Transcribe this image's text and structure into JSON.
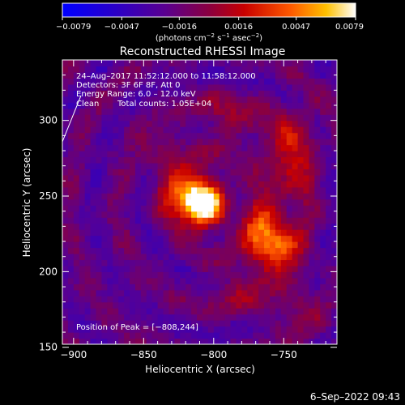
{
  "chart_data": {
    "type": "heatmap",
    "title": "Reconstructed RHESSI Image",
    "xlabel": "Heliocentric X (arcsec)",
    "ylabel": "Heliocentric Y (arcsec)",
    "xlim": [
      -908,
      -712
    ],
    "ylim": [
      152,
      340
    ],
    "xticks": [
      -900,
      -850,
      -800,
      -750
    ],
    "yticks": [
      150,
      200,
      250,
      300
    ],
    "x_tick_labels": [
      "−900",
      "−850",
      "−800",
      "−750"
    ],
    "y_tick_labels": [
      "150",
      "200",
      "250",
      "300"
    ],
    "colorbar": {
      "min": -0.0079,
      "max": 0.0079,
      "ticks": [
        -0.0079,
        -0.0047,
        -0.0016,
        0.0016,
        0.0047,
        0.0079
      ],
      "tick_labels": [
        "−0.0079",
        "−0.0047",
        "−0.0016",
        "0.0016",
        "0.0047",
        "0.0079"
      ],
      "unit_main": "(photons cm",
      "unit_exp1": "−2",
      "unit_mid": " s",
      "unit_exp2": "−1",
      "unit_mid2": " asec",
      "unit_exp3": "−2",
      "unit_end": ")"
    },
    "annotations": [
      "24–Aug–2017 11:52:12.000 to 11:58:12.000",
      "Detectors: 3F 6F 8F, Att 0",
      "Energy Range: 6.0 – 12.0 keV",
      "Clean",
      "Total counts: 1.05E+04"
    ],
    "peak_label": "Position of Peak = [−808,244]",
    "peak": [
      -808,
      244
    ],
    "sources": [
      {
        "x": -808,
        "y": 244,
        "amp": 1.0,
        "sx": 10,
        "sy": 10
      },
      {
        "x": -818,
        "y": 252,
        "amp": 0.55,
        "sx": 14,
        "sy": 12
      },
      {
        "x": -756,
        "y": 218,
        "amp": 0.75,
        "sx": 12,
        "sy": 11
      },
      {
        "x": -770,
        "y": 232,
        "amp": 0.35,
        "sx": 10,
        "sy": 10
      },
      {
        "x": -748,
        "y": 262,
        "amp": 0.3,
        "sx": 14,
        "sy": 16
      },
      {
        "x": -745,
        "y": 290,
        "amp": 0.28,
        "sx": 12,
        "sy": 14
      },
      {
        "x": -790,
        "y": 300,
        "amp": 0.25,
        "sx": 15,
        "sy": 10
      },
      {
        "x": -835,
        "y": 280,
        "amp": 0.2,
        "sx": 12,
        "sy": 10
      },
      {
        "x": -780,
        "y": 190,
        "amp": 0.22,
        "sx": 16,
        "sy": 12
      },
      {
        "x": -740,
        "y": 175,
        "amp": 0.18,
        "sx": 12,
        "sy": 12
      }
    ]
  },
  "footer": {
    "timestamp": "6–Sep–2022 09:43"
  }
}
